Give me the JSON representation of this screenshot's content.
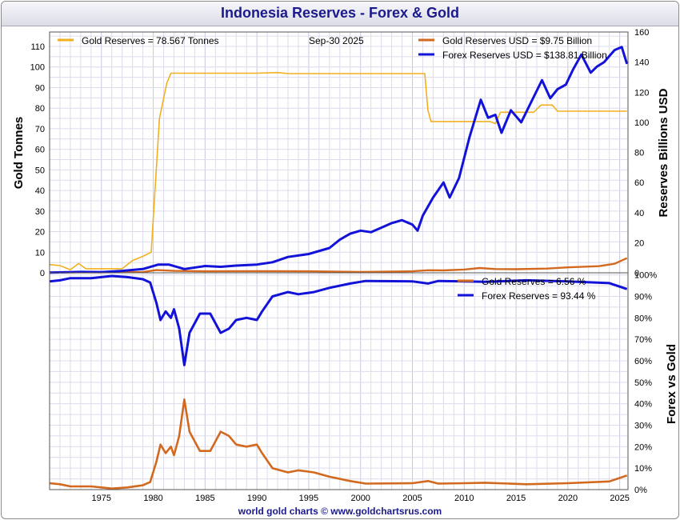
{
  "page": {
    "title": "Indonesia Reserves - Forex & Gold",
    "footer": "world gold charts © www.goldchartsrus.com"
  },
  "colors": {
    "gold": "#f2b01e",
    "gold_usd": "#d2691e",
    "forex": "#1212d8",
    "grid": "#dcdcec"
  },
  "chart_data": [
    {
      "type": "line",
      "title": "Indonesia Reserves - Forex & Gold",
      "date_label": "Sep-30  2025",
      "xlim": [
        1970,
        2025.8
      ],
      "x_ticks": [
        1975,
        1980,
        1985,
        1990,
        1995,
        2000,
        2005,
        2010,
        2015,
        2020,
        2025
      ],
      "y_left": {
        "label": "Gold Tonnes",
        "range": [
          0,
          117
        ],
        "ticks": [
          0,
          10,
          20,
          30,
          40,
          50,
          60,
          70,
          80,
          90,
          100,
          110
        ]
      },
      "y_right": {
        "label": "Reserves Billions USD",
        "range": [
          0,
          160
        ],
        "ticks": [
          0,
          20,
          40,
          60,
          80,
          100,
          120,
          140,
          160
        ]
      },
      "legend": [
        {
          "key": "gold_tonnes",
          "text": "Gold Reserves  = 78.567 Tonnes"
        },
        {
          "key": "gold_usd",
          "text": "Gold Reserves USD    = $9.75 Billion"
        },
        {
          "key": "forex_usd",
          "text": "Forex Reserves USD  = $138.81 Billion"
        }
      ],
      "series": [
        {
          "name": "Gold Reserves (Tonnes)",
          "axis": "left",
          "color_key": "gold",
          "points": [
            [
              1970.0,
              4
            ],
            [
              1971.0,
              3.5
            ],
            [
              1972.0,
              1.5
            ],
            [
              1972.8,
              4.5
            ],
            [
              1973.5,
              2
            ],
            [
              1977.0,
              2
            ],
            [
              1978.0,
              6
            ],
            [
              1979.0,
              8
            ],
            [
              1979.8,
              10
            ],
            [
              1980.6,
              75
            ],
            [
              1981.3,
              92
            ],
            [
              1981.7,
              97
            ],
            [
              1985.0,
              97
            ],
            [
              1990.0,
              97
            ],
            [
              1992.0,
              97.3
            ],
            [
              1993.0,
              96.8
            ],
            [
              2000.0,
              96.8
            ],
            [
              2006.2,
              96.8
            ],
            [
              2006.5,
              79
            ],
            [
              2006.8,
              73.5
            ],
            [
              2012.5,
              73.5
            ],
            [
              2013.0,
              72.5
            ],
            [
              2013.5,
              78
            ],
            [
              2016.7,
              78
            ],
            [
              2017.4,
              81.5
            ],
            [
              2018.5,
              81.5
            ],
            [
              2019.0,
              78.5
            ],
            [
              2025.7,
              78.5
            ]
          ]
        },
        {
          "name": "Gold Reserves USD (Billion)",
          "axis": "right",
          "color_key": "gold_usd",
          "points": [
            [
              1970.0,
              0.2
            ],
            [
              1975.0,
              0.3
            ],
            [
              1979.0,
              0.5
            ],
            [
              1980.3,
              1.8
            ],
            [
              1982.0,
              1.3
            ],
            [
              1985.0,
              1.0
            ],
            [
              1990.0,
              1.1
            ],
            [
              1995.0,
              1.0
            ],
            [
              2000.0,
              0.6
            ],
            [
              2005.0,
              1.0
            ],
            [
              2006.5,
              1.7
            ],
            [
              2008.0,
              1.6
            ],
            [
              2010.0,
              2.2
            ],
            [
              2011.5,
              3.2
            ],
            [
              2013.0,
              2.5
            ],
            [
              2015.0,
              2.4
            ],
            [
              2018.0,
              2.8
            ],
            [
              2020.0,
              3.6
            ],
            [
              2023.0,
              4.4
            ],
            [
              2024.5,
              6.0
            ],
            [
              2025.7,
              9.75
            ]
          ]
        },
        {
          "name": "Forex Reserves USD (Billion)",
          "axis": "right",
          "color_key": "forex",
          "points": [
            [
              1970.0,
              0.1
            ],
            [
              1973.0,
              0.6
            ],
            [
              1975.0,
              0.5
            ],
            [
              1977.0,
              1.3
            ],
            [
              1979.0,
              2.5
            ],
            [
              1980.5,
              5.5
            ],
            [
              1981.5,
              5.5
            ],
            [
              1982.5,
              3.5
            ],
            [
              1983.0,
              2.5
            ],
            [
              1985.0,
              4.5
            ],
            [
              1986.5,
              4.0
            ],
            [
              1988.0,
              4.8
            ],
            [
              1990.0,
              5.5
            ],
            [
              1991.5,
              7.0
            ],
            [
              1993.0,
              10.5
            ],
            [
              1995.0,
              12.5
            ],
            [
              1997.0,
              16.5
            ],
            [
              1998.0,
              22.0
            ],
            [
              1999.0,
              26.0
            ],
            [
              2000.0,
              28.0
            ],
            [
              2001.0,
              27.0
            ],
            [
              2002.0,
              30.0
            ],
            [
              2003.0,
              33.0
            ],
            [
              2004.0,
              35.0
            ],
            [
              2005.0,
              32.0
            ],
            [
              2005.5,
              28.0
            ],
            [
              2006.0,
              38.0
            ],
            [
              2007.0,
              50.0
            ],
            [
              2008.0,
              60.0
            ],
            [
              2008.6,
              50.0
            ],
            [
              2009.5,
              63.0
            ],
            [
              2010.5,
              90.0
            ],
            [
              2011.6,
              115.0
            ],
            [
              2012.3,
              103.0
            ],
            [
              2013.0,
              105.0
            ],
            [
              2013.6,
              93.0
            ],
            [
              2014.5,
              108.0
            ],
            [
              2015.5,
              100.0
            ],
            [
              2016.5,
              114.0
            ],
            [
              2017.5,
              128.0
            ],
            [
              2018.3,
              116.0
            ],
            [
              2019.0,
              122.0
            ],
            [
              2019.8,
              125.0
            ],
            [
              2020.5,
              135.0
            ],
            [
              2021.3,
              145.0
            ],
            [
              2022.2,
              133.0
            ],
            [
              2022.8,
              137.0
            ],
            [
              2023.5,
              140.0
            ],
            [
              2024.5,
              148.0
            ],
            [
              2025.2,
              150.0
            ],
            [
              2025.7,
              138.81
            ]
          ]
        }
      ]
    },
    {
      "type": "line",
      "title": "Forex vs Gold",
      "xlim": [
        1970,
        2025.8
      ],
      "y_right": {
        "label": "Forex vs Gold",
        "range": [
          0,
          101
        ],
        "ticks": [
          0,
          10,
          20,
          30,
          40,
          50,
          60,
          70,
          80,
          90,
          100
        ],
        "tick_labels": [
          "0%",
          "10%",
          "20%",
          "30%",
          "40%",
          "50%",
          "60%",
          "70%",
          "80%",
          "90%",
          "100%"
        ]
      },
      "x_ticks": [
        1975,
        1980,
        1985,
        1990,
        1995,
        2000,
        2005,
        2010,
        2015,
        2020,
        2025
      ],
      "legend": [
        {
          "key": "gold_pct",
          "text": "Gold Reserves      = 6.56 %"
        },
        {
          "key": "forex_pct",
          "text": "Forex Reserves  = 93.44 %"
        }
      ],
      "series": [
        {
          "name": "Gold Reserves %",
          "color_key": "gold_usd",
          "points": [
            [
              1970.0,
              3
            ],
            [
              1971.0,
              2.5
            ],
            [
              1972.0,
              1.5
            ],
            [
              1974.0,
              1.5
            ],
            [
              1975.0,
              1.0
            ],
            [
              1976.0,
              0.5
            ],
            [
              1977.5,
              1.0
            ],
            [
              1979.0,
              2.0
            ],
            [
              1979.7,
              3.5
            ],
            [
              1980.3,
              13
            ],
            [
              1980.7,
              21
            ],
            [
              1981.2,
              17
            ],
            [
              1981.7,
              20
            ],
            [
              1982.0,
              16
            ],
            [
              1982.5,
              25
            ],
            [
              1983.0,
              42
            ],
            [
              1983.5,
              27
            ],
            [
              1984.5,
              18
            ],
            [
              1985.5,
              18
            ],
            [
              1986.5,
              27
            ],
            [
              1987.3,
              25
            ],
            [
              1988.0,
              21
            ],
            [
              1989.0,
              20
            ],
            [
              1990.0,
              21
            ],
            [
              1990.5,
              17
            ],
            [
              1991.5,
              10
            ],
            [
              1993.0,
              8
            ],
            [
              1994.0,
              9
            ],
            [
              1995.5,
              8
            ],
            [
              1997.0,
              6
            ],
            [
              1999.0,
              4
            ],
            [
              2000.5,
              2.8
            ],
            [
              2005.0,
              3
            ],
            [
              2006.5,
              4
            ],
            [
              2007.5,
              2.8
            ],
            [
              2010.0,
              3
            ],
            [
              2012.0,
              3.2
            ],
            [
              2016.0,
              2.5
            ],
            [
              2020.0,
              3.0
            ],
            [
              2024.0,
              3.8
            ],
            [
              2025.7,
              6.56
            ]
          ]
        },
        {
          "name": "Forex Reserves %",
          "color_key": "forex",
          "points": [
            [
              1970.0,
              97
            ],
            [
              1971.0,
              97.5
            ],
            [
              1972.0,
              98.5
            ],
            [
              1974.0,
              98.5
            ],
            [
              1975.0,
              99
            ],
            [
              1976.0,
              99.5
            ],
            [
              1977.5,
              99
            ],
            [
              1979.0,
              98
            ],
            [
              1979.7,
              96.5
            ],
            [
              1980.3,
              87
            ],
            [
              1980.7,
              79
            ],
            [
              1981.2,
              83
            ],
            [
              1981.7,
              80
            ],
            [
              1982.0,
              84
            ],
            [
              1982.5,
              75
            ],
            [
              1983.0,
              58
            ],
            [
              1983.5,
              73
            ],
            [
              1984.5,
              82
            ],
            [
              1985.5,
              82
            ],
            [
              1986.5,
              73
            ],
            [
              1987.3,
              75
            ],
            [
              1988.0,
              79
            ],
            [
              1989.0,
              80
            ],
            [
              1990.0,
              79
            ],
            [
              1990.5,
              83
            ],
            [
              1991.5,
              90
            ],
            [
              1993.0,
              92
            ],
            [
              1994.0,
              91
            ],
            [
              1995.5,
              92
            ],
            [
              1997.0,
              94
            ],
            [
              1999.0,
              96
            ],
            [
              2000.5,
              97.2
            ],
            [
              2005.0,
              97
            ],
            [
              2006.5,
              96
            ],
            [
              2007.5,
              97.2
            ],
            [
              2010.0,
              97
            ],
            [
              2012.0,
              96.8
            ],
            [
              2016.0,
              97.5
            ],
            [
              2020.0,
              97.0
            ],
            [
              2024.0,
              96.2
            ],
            [
              2025.7,
              93.44
            ]
          ]
        }
      ]
    }
  ]
}
